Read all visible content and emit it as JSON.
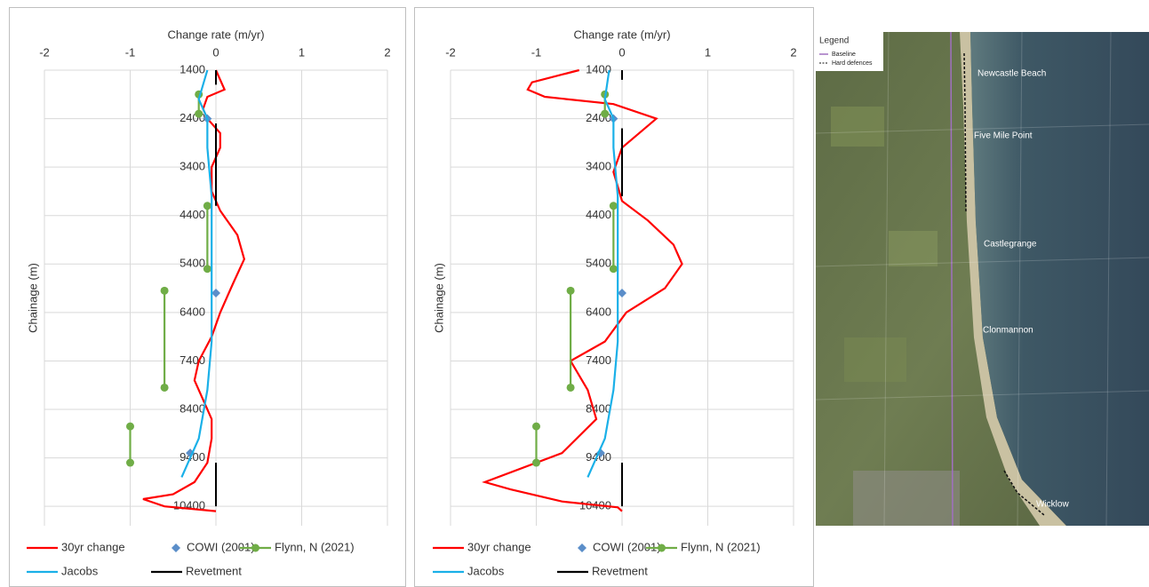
{
  "chart_data": [
    {
      "type": "line",
      "xlabel": "Change rate (m/yr)",
      "ylabel": "Chainage (m)",
      "xlim": [
        -2,
        2
      ],
      "xticks": [
        -2,
        -1,
        0,
        1,
        2
      ],
      "ylim": [
        1400,
        10800
      ],
      "yticks": [
        1400,
        2400,
        3400,
        4400,
        5400,
        6400,
        7400,
        8400,
        9400,
        10400
      ],
      "y_reversed": true,
      "grid": true,
      "series": [
        {
          "name": "30yr change",
          "color": "#ff0000",
          "line": true,
          "marker": null,
          "chainage": [
            1400,
            1800,
            1950,
            2200,
            2400,
            2700,
            3000,
            3400,
            3900,
            4300,
            4800,
            5300,
            5800,
            6400,
            6900,
            7400,
            7800,
            8200,
            8600,
            9000,
            9500,
            9900,
            10150,
            10250,
            10400,
            10500
          ],
          "values": [
            0.0,
            0.1,
            -0.1,
            -0.15,
            -0.1,
            0.05,
            0.05,
            -0.05,
            -0.05,
            0.05,
            0.25,
            0.33,
            0.2,
            0.05,
            -0.05,
            -0.2,
            -0.25,
            -0.15,
            -0.05,
            -0.05,
            -0.1,
            -0.25,
            -0.5,
            -0.85,
            -0.6,
            0.0
          ]
        },
        {
          "name": "COWI (2001)",
          "color": "#5b8ec9",
          "line": false,
          "marker": "diamond",
          "chainage": [
            2400,
            6000,
            9300
          ],
          "values": [
            -0.1,
            0.0,
            -0.3
          ]
        },
        {
          "name": "Flynn, N (2021)",
          "color": "#70ad47",
          "line": true,
          "marker": "circle",
          "chainage": [
            1900,
            2300,
            null,
            4200,
            5500,
            null,
            5950,
            7950,
            null,
            8750,
            9500
          ],
          "values": [
            -0.2,
            -0.2,
            null,
            -0.1,
            -0.1,
            null,
            -0.6,
            -0.6,
            null,
            -1.0,
            -1.0
          ]
        },
        {
          "name": "Jacobs",
          "color": "#1ab0e8",
          "line": true,
          "marker": null,
          "chainage": [
            1400,
            2000,
            2400,
            3000,
            4000,
            5000,
            6000,
            7000,
            8000,
            8500,
            9000,
            9400,
            9800
          ],
          "values": [
            -0.1,
            -0.2,
            -0.1,
            -0.1,
            -0.05,
            -0.05,
            -0.05,
            -0.05,
            -0.1,
            -0.15,
            -0.2,
            -0.3,
            -0.4
          ]
        },
        {
          "name": "Revetment",
          "color": "#000000",
          "line": true,
          "marker": null,
          "chainage": [
            1400,
            1700,
            null,
            2500,
            4200,
            null,
            9500,
            10400
          ],
          "values": [
            0,
            0,
            null,
            0,
            0,
            null,
            0,
            0
          ]
        }
      ]
    },
    {
      "type": "line",
      "xlabel": "Change rate (m/yr)",
      "ylabel": "Chainage (m)",
      "xlim": [
        -2,
        2
      ],
      "xticks": [
        -2,
        -1,
        0,
        1,
        2
      ],
      "ylim": [
        1400,
        10800
      ],
      "yticks": [
        1400,
        2400,
        3400,
        4400,
        5400,
        6400,
        7400,
        8400,
        9400,
        10400
      ],
      "y_reversed": true,
      "grid": true,
      "series": [
        {
          "name": "30yr change",
          "color": "#ff0000",
          "line": true,
          "marker": null,
          "chainage": [
            1400,
            1650,
            1800,
            1950,
            2100,
            2400,
            2700,
            3000,
            3500,
            4100,
            4500,
            5000,
            5400,
            5900,
            6400,
            7000,
            7400,
            8000,
            8600,
            9300,
            9900,
            10050,
            10300,
            10420,
            10500
          ],
          "values": [
            -0.5,
            -1.05,
            -1.1,
            -0.9,
            -0.1,
            0.4,
            0.2,
            0.0,
            -0.1,
            0.0,
            0.3,
            0.6,
            0.7,
            0.5,
            0.05,
            -0.2,
            -0.6,
            -0.4,
            -0.3,
            -0.7,
            -1.6,
            -1.3,
            -0.7,
            -0.05,
            0.0
          ]
        },
        {
          "name": "COWI (2001)",
          "color": "#5b8ec9",
          "line": false,
          "marker": "diamond",
          "chainage": [
            2400,
            6000,
            9300
          ],
          "values": [
            -0.1,
            0.0,
            -0.25
          ]
        },
        {
          "name": "Flynn, N (2021)",
          "color": "#70ad47",
          "line": true,
          "marker": "circle",
          "chainage": [
            1900,
            2300,
            null,
            4200,
            5500,
            null,
            5950,
            7950,
            null,
            8750,
            9500
          ],
          "values": [
            -0.2,
            -0.2,
            null,
            -0.1,
            -0.1,
            null,
            -0.6,
            -0.6,
            null,
            -1.0,
            -1.0
          ]
        },
        {
          "name": "Jacobs",
          "color": "#1ab0e8",
          "line": true,
          "marker": null,
          "chainage": [
            1400,
            2000,
            2400,
            3000,
            4000,
            5000,
            6000,
            7000,
            8000,
            8500,
            9000,
            9400,
            9800
          ],
          "values": [
            -0.15,
            -0.2,
            -0.1,
            -0.1,
            -0.05,
            -0.05,
            -0.05,
            -0.05,
            -0.1,
            -0.15,
            -0.2,
            -0.3,
            -0.4
          ]
        },
        {
          "name": "Revetment",
          "color": "#000000",
          "line": true,
          "marker": null,
          "chainage": [
            1400,
            1600,
            null,
            2600,
            4000,
            null,
            9500,
            10400
          ],
          "values": [
            0,
            0,
            null,
            0,
            0,
            null,
            0,
            0
          ]
        }
      ]
    }
  ],
  "map": {
    "legend_title": "Legend",
    "legend_items": [
      "Baseline",
      "Hard defences"
    ],
    "places": [
      "Newcastle Beach",
      "Five Mile Point",
      "Castlegrange",
      "Clonmannon",
      "Wicklow"
    ]
  }
}
